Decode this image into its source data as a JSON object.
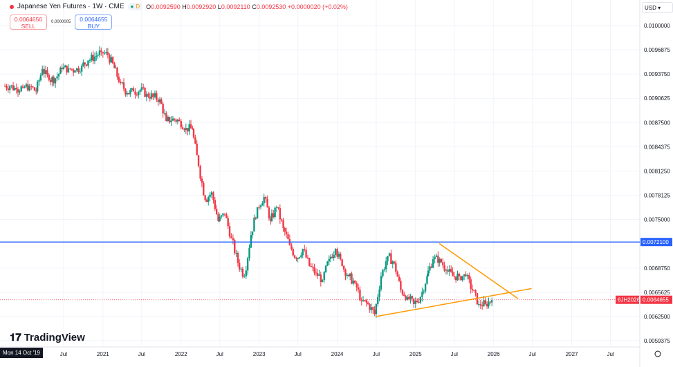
{
  "header": {
    "symbol_title": "Japanese Yen Futures · 1W · CME",
    "badge_market": "●",
    "badge_d": "D",
    "open_label": "O",
    "open": "0.0092590",
    "high_label": "H",
    "high": "0.0092920",
    "low_label": "L",
    "low": "0.0092110",
    "close_label": "C",
    "close": "0.0092530",
    "change": "+0.0000020 (+0.02%)"
  },
  "trade": {
    "sell_price": "0.0064650",
    "sell_label": "SELL",
    "spread": "0.0000005",
    "buy_price": "0.0064655",
    "buy_label": "BUY"
  },
  "currency": "USD ▾",
  "brand": "TradingView",
  "crosshair_date": "Mon 14 Oct '19",
  "colors": {
    "up": "#089981",
    "down": "#f23645",
    "hline": "#2962ff",
    "trend": "#ff9800"
  },
  "chart_data": {
    "type": "candlestick",
    "interval": "1W",
    "y_ticks": [
      "0.0100000",
      "0.0096875",
      "0.0093750",
      "0.0090625",
      "0.0087500",
      "0.0084375",
      "0.0081250",
      "0.0078125",
      "0.0075000",
      "0.0068750",
      "0.0065625",
      "0.0062500",
      "0.0059375"
    ],
    "ylim": [
      0.0059375,
      0.01
    ],
    "x_ticks": [
      [
        "2020-07-01",
        "Jul"
      ],
      [
        "2021-01-01",
        "2021"
      ],
      [
        "2021-07-01",
        "Jul"
      ],
      [
        "2022-01-01",
        "2022"
      ],
      [
        "2022-07-01",
        "Jul"
      ],
      [
        "2023-01-01",
        "2023"
      ],
      [
        "2023-07-01",
        "Jul"
      ],
      [
        "2024-01-01",
        "2024"
      ],
      [
        "2024-07-01",
        "Jul"
      ],
      [
        "2025-01-01",
        "2025"
      ],
      [
        "2025-07-01",
        "Jul"
      ],
      [
        "2026-01-01",
        "2026"
      ],
      [
        "2026-07-01",
        "Jul"
      ],
      [
        "2027-01-01",
        "2027"
      ],
      [
        "2027-07-01",
        "Jul"
      ]
    ],
    "xlim": [
      "2019-10-07",
      "2027-11-15"
    ],
    "monthly_close": [
      [
        "2019-10",
        0.00922
      ],
      [
        "2019-11",
        0.00918
      ],
      [
        "2019-12",
        0.0092
      ],
      [
        "2020-01",
        0.00922
      ],
      [
        "2020-02",
        0.00915
      ],
      [
        "2020-03",
        0.00944
      ],
      [
        "2020-04",
        0.0093
      ],
      [
        "2020-05",
        0.00932
      ],
      [
        "2020-06",
        0.00944
      ],
      [
        "2020-07",
        0.00945
      ],
      [
        "2020-08",
        0.00942
      ],
      [
        "2020-09",
        0.00948
      ],
      [
        "2020-10",
        0.00955
      ],
      [
        "2020-11",
        0.0096
      ],
      [
        "2020-12",
        0.00966
      ],
      [
        "2021-01",
        0.00962
      ],
      [
        "2021-02",
        0.00945
      ],
      [
        "2021-03",
        0.00926
      ],
      [
        "2021-04",
        0.00913
      ],
      [
        "2021-05",
        0.00915
      ],
      [
        "2021-06",
        0.00917
      ],
      [
        "2021-07",
        0.00912
      ],
      [
        "2021-08",
        0.00908
      ],
      [
        "2021-09",
        0.00905
      ],
      [
        "2021-10",
        0.00877
      ],
      [
        "2021-11",
        0.0088
      ],
      [
        "2021-12",
        0.00877
      ],
      [
        "2022-01",
        0.00868
      ],
      [
        "2022-02",
        0.00866
      ],
      [
        "2022-03",
        0.00819
      ],
      [
        "2022-04",
        0.00775
      ],
      [
        "2022-05",
        0.00785
      ],
      [
        "2022-06",
        0.00748
      ],
      [
        "2022-07",
        0.00757
      ],
      [
        "2022-08",
        0.00726
      ],
      [
        "2022-09",
        0.00694
      ],
      [
        "2022-10",
        0.00677
      ],
      [
        "2022-11",
        0.0073
      ],
      [
        "2022-12",
        0.00766
      ],
      [
        "2023-01",
        0.00779
      ],
      [
        "2023-02",
        0.00748
      ],
      [
        "2023-03",
        0.00766
      ],
      [
        "2023-04",
        0.00739
      ],
      [
        "2023-05",
        0.00717
      ],
      [
        "2023-06",
        0.00699
      ],
      [
        "2023-07",
        0.00712
      ],
      [
        "2023-08",
        0.0069
      ],
      [
        "2023-09",
        0.00681
      ],
      [
        "2023-10",
        0.00672
      ],
      [
        "2023-11",
        0.00699
      ],
      [
        "2023-12",
        0.00712
      ],
      [
        "2024-01",
        0.0069
      ],
      [
        "2024-02",
        0.00677
      ],
      [
        "2024-03",
        0.00668
      ],
      [
        "2024-04",
        0.00645
      ],
      [
        "2024-05",
        0.00641
      ],
      [
        "2024-06",
        0.00628
      ],
      [
        "2024-07",
        0.00677
      ],
      [
        "2024-08",
        0.00703
      ],
      [
        "2024-09",
        0.00694
      ],
      [
        "2024-10",
        0.00659
      ],
      [
        "2024-11",
        0.0065
      ],
      [
        "2024-12",
        0.00641
      ],
      [
        "2025-01",
        0.0065
      ],
      [
        "2025-02",
        0.00677
      ],
      [
        "2025-03",
        0.00699
      ],
      [
        "2025-04",
        0.00699
      ],
      [
        "2025-05",
        0.00685
      ],
      [
        "2025-06",
        0.00677
      ],
      [
        "2025-07",
        0.00677
      ],
      [
        "2025-08",
        0.00677
      ],
      [
        "2025-09",
        0.00659
      ],
      [
        "2025-10",
        0.00641
      ],
      [
        "2025-11",
        0.00641
      ],
      [
        "2025-12",
        0.00646
      ]
    ],
    "horizontal_line": {
      "price": 0.00721,
      "label": "0.0072100"
    },
    "current_price": {
      "price": 0.0064655,
      "label": "0.0064655",
      "symbol": "6JH2026"
    },
    "trendlines": [
      {
        "from": [
          "2024-07-01",
          0.00625
        ],
        "to": [
          "2026-06-27",
          0.00661
        ]
      },
      {
        "from": [
          "2025-04-22",
          0.00719
        ],
        "to": [
          "2026-04-25",
          0.00648
        ]
      }
    ]
  }
}
